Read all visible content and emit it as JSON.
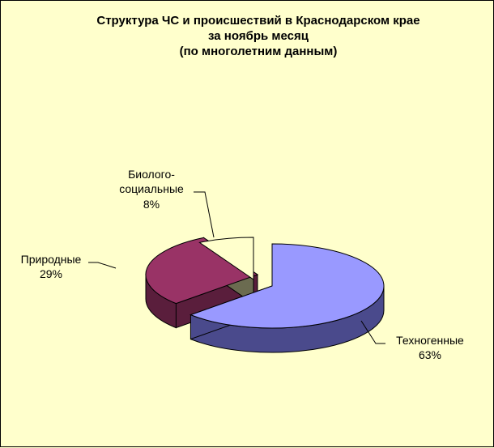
{
  "chart_data": {
    "type": "pie",
    "title_lines": [
      "Структура  ЧС и происшествий  в Краснодарском  крае",
      "за ноябрь месяц",
      "(по многолетним  данным)"
    ],
    "slices": [
      {
        "key": "tech",
        "label_lines": [
          "Техногенные"
        ],
        "percent_text": "63%",
        "value": 63,
        "color": "#9999ff"
      },
      {
        "key": "nat",
        "label_lines": [
          "Природные"
        ],
        "percent_text": "29%",
        "value": 29,
        "color": "#993366"
      },
      {
        "key": "bio",
        "label_lines": [
          "Биолого-",
          "социальные"
        ],
        "percent_text": "8%",
        "value": 8,
        "color": "#ffffcc"
      }
    ],
    "colors": {
      "background": "#ffffcc",
      "tech_side": "#4a4a8c",
      "nat_side": "#5a1e3c",
      "bio_side": "#6b6b50"
    }
  }
}
